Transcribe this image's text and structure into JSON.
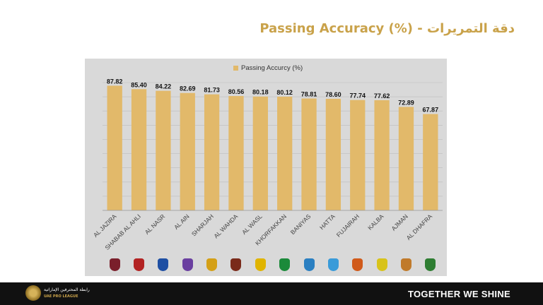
{
  "header": {
    "title": "Passing Accuracy (%) - دقة التمريرات"
  },
  "colors": {
    "bar": "#e2b96a",
    "gold": "#c9a24a",
    "panel": "#d9d9d9",
    "footer": "#111111"
  },
  "chart_data": {
    "type": "bar",
    "title": "",
    "legend": "Passing Accurcy (%)",
    "legend_position": "top-center",
    "categories": [
      "AL JAZIRA",
      "SHABAB AL AHLI",
      "AL NASR",
      "AL AIN",
      "SHARJAH",
      "AL WAHDA",
      "AL WASL",
      "KHORFAKKAN",
      "BANIYAS",
      "HATTA",
      "FUJAIRAH",
      "KALBA",
      "AJMAN",
      "AL DHAFRA"
    ],
    "values": [
      87.82,
      85.4,
      84.22,
      82.69,
      81.73,
      80.56,
      80.18,
      80.12,
      78.81,
      78.6,
      77.74,
      77.62,
      72.89,
      67.87
    ],
    "value_labels": [
      "87.82",
      "85.40",
      "84.22",
      "82.69",
      "81.73",
      "80.56",
      "80.18",
      "80.12",
      "78.81",
      "78.60",
      "77.74",
      "77.62",
      "72.89",
      "67.87"
    ],
    "ylim": [
      0,
      90
    ],
    "grid": true,
    "xlabel": "",
    "ylabel": ""
  },
  "team_logos": [
    "al-jazira-logo-icon",
    "shabab-al-ahli-logo-icon",
    "al-nasr-logo-icon",
    "al-ain-logo-icon",
    "sharjah-logo-icon",
    "al-wahda-logo-icon",
    "al-wasl-logo-icon",
    "khorfakkan-logo-icon",
    "baniyas-logo-icon",
    "hatta-logo-icon",
    "fujairah-logo-icon",
    "kalba-logo-icon",
    "ajman-logo-icon",
    "al-dhafra-logo-icon"
  ],
  "footer": {
    "league_name_ar": "رابطة المحترفين الإماراتية",
    "league_name_en": "UAE PRO LEAGUE",
    "slogan": "TOGETHER WE SHINE"
  }
}
